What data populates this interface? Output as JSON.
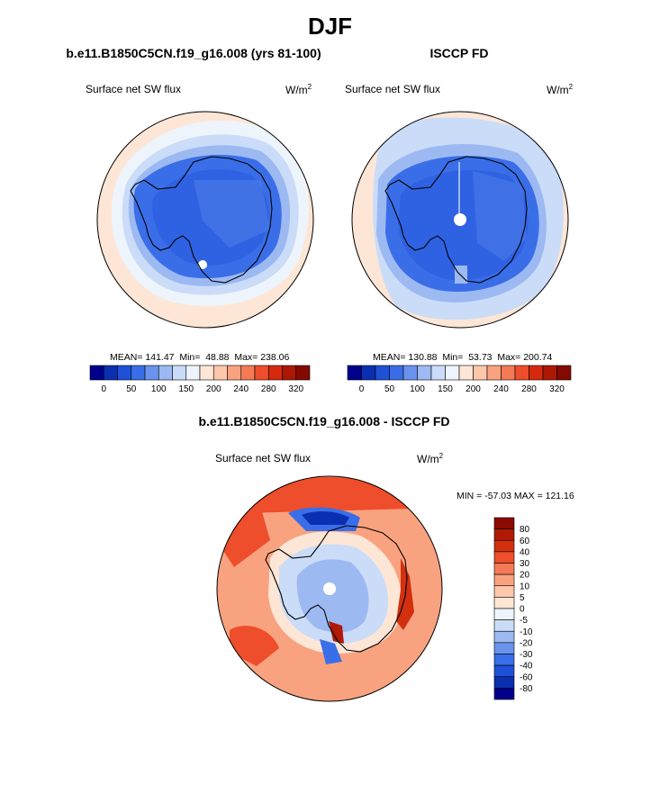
{
  "figure": {
    "title": "DJF"
  },
  "panels": [
    {
      "title": "b.e11.B1850C5CN.f19_g16.008 (yrs 81-100)",
      "variable": "Surface net SW flux",
      "units": "W/m",
      "units_sup": "2",
      "stats": "MEAN= 141.47  Min=  48.88  Max= 238.06"
    },
    {
      "title": "ISCCP FD",
      "variable": "Surface net SW flux",
      "units": "W/m",
      "units_sup": "2",
      "stats": "MEAN= 130.88  Min=  53.73  Max= 200.74"
    },
    {
      "title": "b.e11.B1850C5CN.f19_g16.008 - ISCCP FD",
      "variable": "Surface net SW flux",
      "units": "W/m",
      "units_sup": "2",
      "stats": "MIN = -57.03 MAX = 121.16"
    }
  ],
  "chart_data": [
    {
      "type": "heatmap",
      "projection": "south-polar-stereographic",
      "title": "b.e11.B1850C5CN.f19_g16.008 (yrs 81-100)",
      "subtitle": "Surface net SW flux",
      "units": "W/m2",
      "mean": 141.47,
      "min": 48.88,
      "max": 238.06,
      "colorbar": {
        "orientation": "horizontal",
        "levels": [
          0,
          50,
          100,
          150,
          200,
          240,
          280,
          320
        ],
        "colors": [
          "#00008c",
          "#0a2fb0",
          "#1f50d8",
          "#3a6ee8",
          "#6a93ee",
          "#9cb9f2",
          "#cadcf8",
          "#eef4fc",
          "#fde6d6",
          "#fcc7aa",
          "#f9a27f",
          "#f47a56",
          "#ee4e2b",
          "#d62a0e",
          "#ad1805",
          "#820a00"
        ]
      }
    },
    {
      "type": "heatmap",
      "projection": "south-polar-stereographic",
      "title": "ISCCP FD",
      "subtitle": "Surface net SW flux",
      "units": "W/m2",
      "mean": 130.88,
      "min": 53.73,
      "max": 200.74,
      "colorbar": {
        "orientation": "horizontal",
        "levels": [
          0,
          50,
          100,
          150,
          200,
          240,
          280,
          320
        ],
        "colors": [
          "#00008c",
          "#0a2fb0",
          "#1f50d8",
          "#3a6ee8",
          "#6a93ee",
          "#9cb9f2",
          "#cadcf8",
          "#eef4fc",
          "#fde6d6",
          "#fcc7aa",
          "#f9a27f",
          "#f47a56",
          "#ee4e2b",
          "#d62a0e",
          "#ad1805",
          "#820a00"
        ]
      }
    },
    {
      "type": "heatmap",
      "projection": "south-polar-stereographic",
      "title": "b.e11.B1850C5CN.f19_g16.008 - ISCCP FD",
      "subtitle": "Surface net SW flux",
      "units": "W/m2",
      "min": -57.03,
      "max": 121.16,
      "colorbar": {
        "orientation": "vertical",
        "levels": [
          80,
          60,
          40,
          30,
          20,
          10,
          5,
          0,
          -5,
          -10,
          -20,
          -30,
          -40,
          -60,
          -80
        ],
        "colors": [
          "#8c0a00",
          "#b01a05",
          "#d3300f",
          "#ee4e2b",
          "#f47a56",
          "#f9a27f",
          "#fcc7aa",
          "#fde6d6",
          "#eef4fc",
          "#cadcf8",
          "#9cb9f2",
          "#6a93ee",
          "#3a6ee8",
          "#1f50d8",
          "#0a2fb0",
          "#00008c"
        ]
      }
    }
  ]
}
